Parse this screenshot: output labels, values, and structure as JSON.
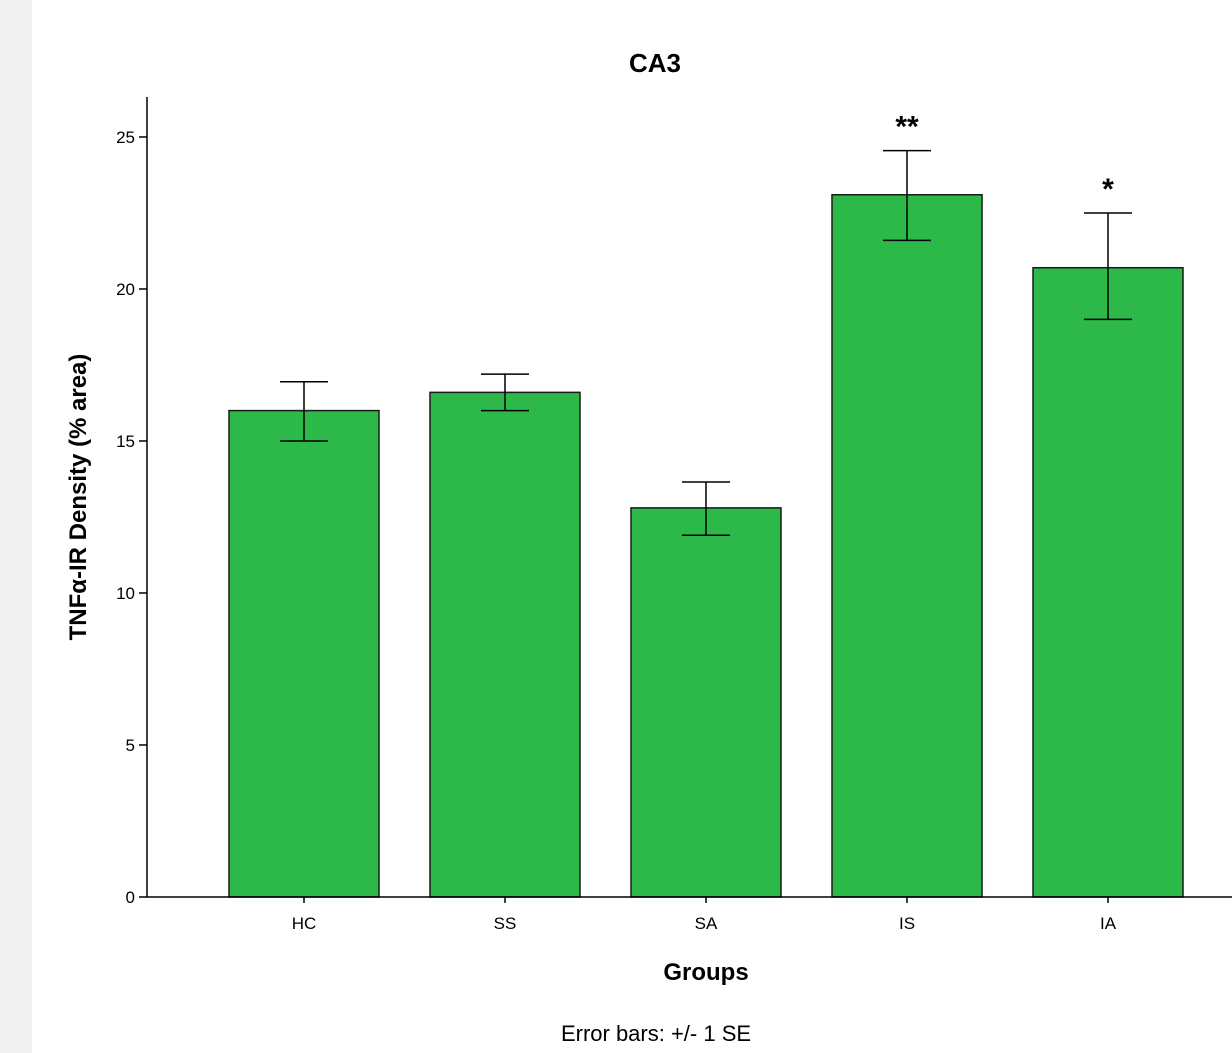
{
  "chart_data": {
    "type": "bar",
    "title": "CA3",
    "xlabel": "Groups",
    "ylabel": "TNFα-IR Density (% area)",
    "categories": [
      "HC",
      "SS",
      "SA",
      "IS",
      "IA"
    ],
    "values": [
      16.0,
      16.6,
      12.8,
      23.1,
      20.7
    ],
    "error_low": [
      15.0,
      16.0,
      11.9,
      21.6,
      19.0
    ],
    "error_high": [
      16.95,
      17.2,
      13.65,
      24.55,
      22.5
    ],
    "significance": [
      "",
      "",
      "",
      "**",
      "*"
    ],
    "ylim": [
      0,
      26.3
    ],
    "yticks": [
      0,
      5,
      10,
      15,
      20,
      25
    ],
    "bar_color": "#2db84a",
    "note": "Error bars: +/- 1 SE",
    "grid": false,
    "legend": "none"
  }
}
